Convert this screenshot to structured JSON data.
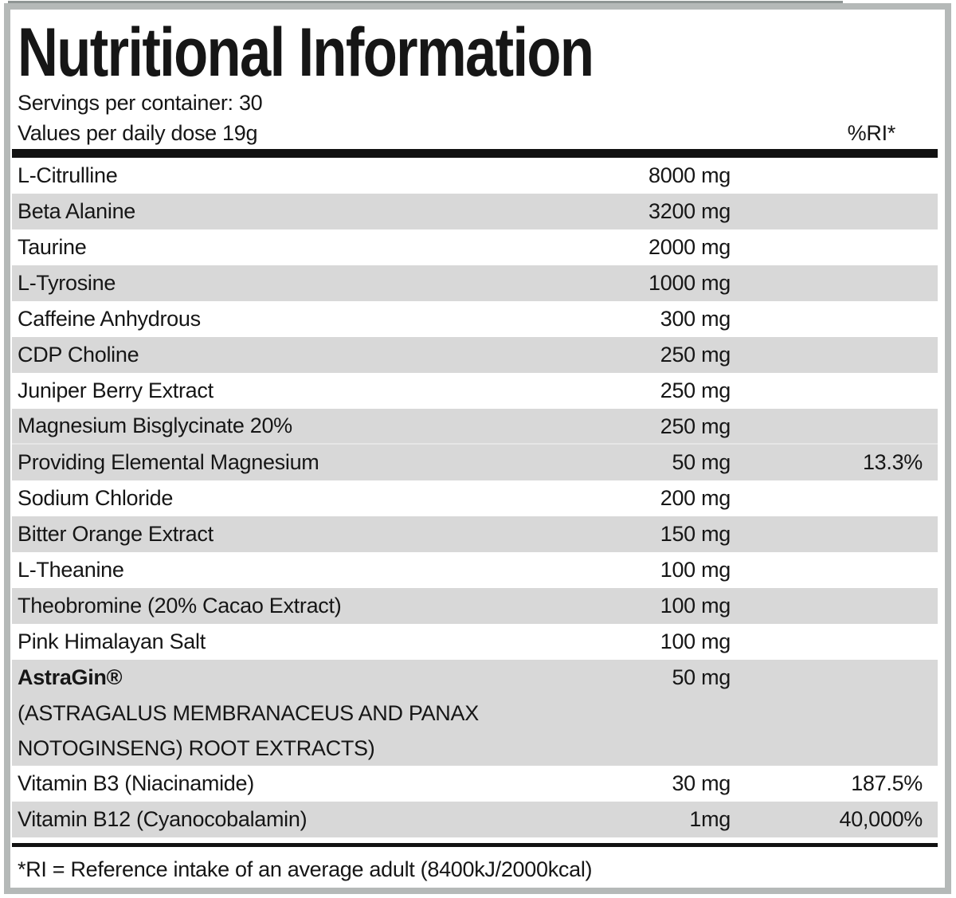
{
  "header": {
    "title": "Nutritional Information",
    "servings_line": "Servings per container: 30",
    "values_line": "Values per daily dose 19g",
    "ri_column_header": "%RI*"
  },
  "table": {
    "rows": [
      {
        "name": "L-Citrulline",
        "amount": "8000 mg",
        "ri": "",
        "shade": false
      },
      {
        "name": "Beta Alanine",
        "amount": "3200 mg",
        "ri": "",
        "shade": true
      },
      {
        "name": "Taurine",
        "amount": "2000 mg",
        "ri": "",
        "shade": false
      },
      {
        "name": "L-Tyrosine",
        "amount": "1000 mg",
        "ri": "",
        "shade": true
      },
      {
        "name": "Caffeine Anhydrous",
        "amount": "300 mg",
        "ri": "",
        "shade": false
      },
      {
        "name": "CDP Choline",
        "amount": "250 mg",
        "ri": "",
        "shade": true
      },
      {
        "name": "Juniper Berry Extract",
        "amount": "250 mg",
        "ri": "",
        "shade": false
      },
      {
        "name": "Magnesium Bisglycinate 20%",
        "amount": "250 mg",
        "ri": "",
        "shade": true,
        "separator_below": true
      },
      {
        "name": "Providing Elemental Magnesium",
        "amount": "50 mg",
        "ri": "13.3%",
        "shade": true
      },
      {
        "name": "Sodium Chloride",
        "amount": "200 mg",
        "ri": "",
        "shade": false
      },
      {
        "name": "Bitter Orange Extract",
        "amount": "150 mg",
        "ri": "",
        "shade": true
      },
      {
        "name": "L-Theanine",
        "amount": "100 mg",
        "ri": "",
        "shade": false
      },
      {
        "name": "Theobromine (20% Cacao Extract)",
        "amount": "100 mg",
        "ri": "",
        "shade": true
      },
      {
        "name": "Pink Himalayan Salt",
        "amount": "100 mg",
        "ri": "",
        "shade": false
      },
      {
        "name": "AstraGin®",
        "amount": "50 mg",
        "ri": "",
        "shade": true,
        "bold": true,
        "sub_lines": [
          "(ASTRAGALUS MEMBRANACEUS AND PANAX",
          "NOTOGINSENG) ROOT EXTRACTS)"
        ]
      },
      {
        "name": "Vitamin B3 (Niacinamide)",
        "amount": "30 mg",
        "ri": "187.5%",
        "shade": false
      },
      {
        "name": "Vitamin B12 (Cyanocobalamin)",
        "amount": "1mg",
        "ri": "40,000%",
        "shade": true
      }
    ]
  },
  "footnote": "*RI = Reference intake of an average adult (8400kJ/2000kcal)",
  "colors": {
    "row_shade": "#d8d8d8",
    "frame_gray": "#b5b9b8",
    "rule_black": "#111111",
    "text": "#161616"
  }
}
